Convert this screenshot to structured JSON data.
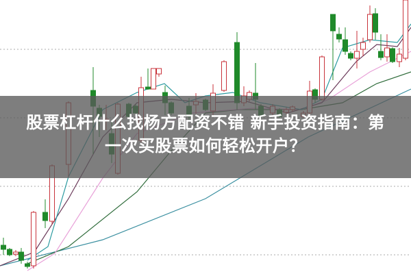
{
  "article": {
    "title_line1": "股票杠杆什么找杨方配资不错 新手投资指南：第",
    "title_line2": "一次买股票如何轻松开户？"
  },
  "chart": {
    "kind": "candlestick-with-moving-averages",
    "grid": "dotted horizontal",
    "colors": {
      "up": "#c8323a",
      "down": "#1f8a2a",
      "ma_teal": "#2b9aa0",
      "ma_purple": "#6b3a5a",
      "ma_pink": "#e8a0d8",
      "ma_green": "#2e6b3a",
      "ma_blue": "#3a8fa0",
      "overlay": "#5a5a5a"
    }
  }
}
